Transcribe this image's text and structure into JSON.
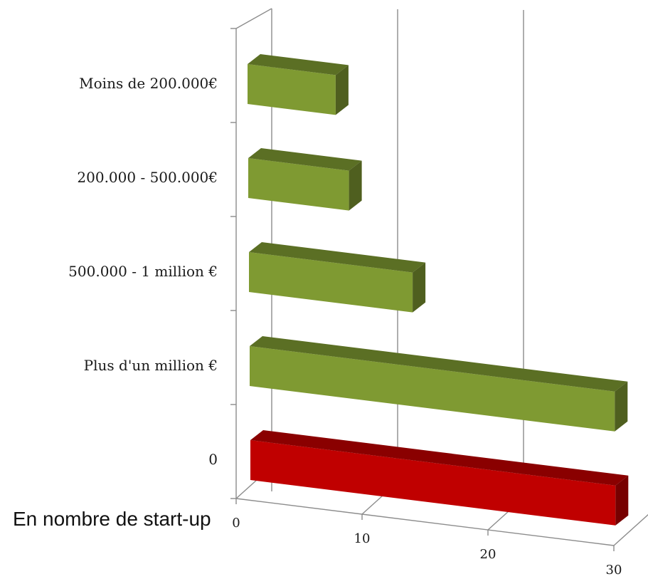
{
  "chart_data": {
    "type": "bar",
    "orientation": "horizontal",
    "style": "3d",
    "caption": "En nombre de start-up",
    "categories": [
      "Moins de 200.000€",
      "200.000 - 500.000€",
      "500.000 - 1 million €",
      "Plus d'un million €",
      "0"
    ],
    "values": [
      7,
      8,
      13,
      29,
      29
    ],
    "bar_colors": [
      "#7f9a32",
      "#7f9a32",
      "#7f9a32",
      "#7f9a32",
      "#c00000"
    ],
    "xlim": [
      0,
      30
    ],
    "xticks": [
      0,
      10,
      20,
      30
    ],
    "xtick_labels": [
      "0",
      "10",
      "20",
      "30"
    ],
    "grid": true,
    "legend": false
  }
}
